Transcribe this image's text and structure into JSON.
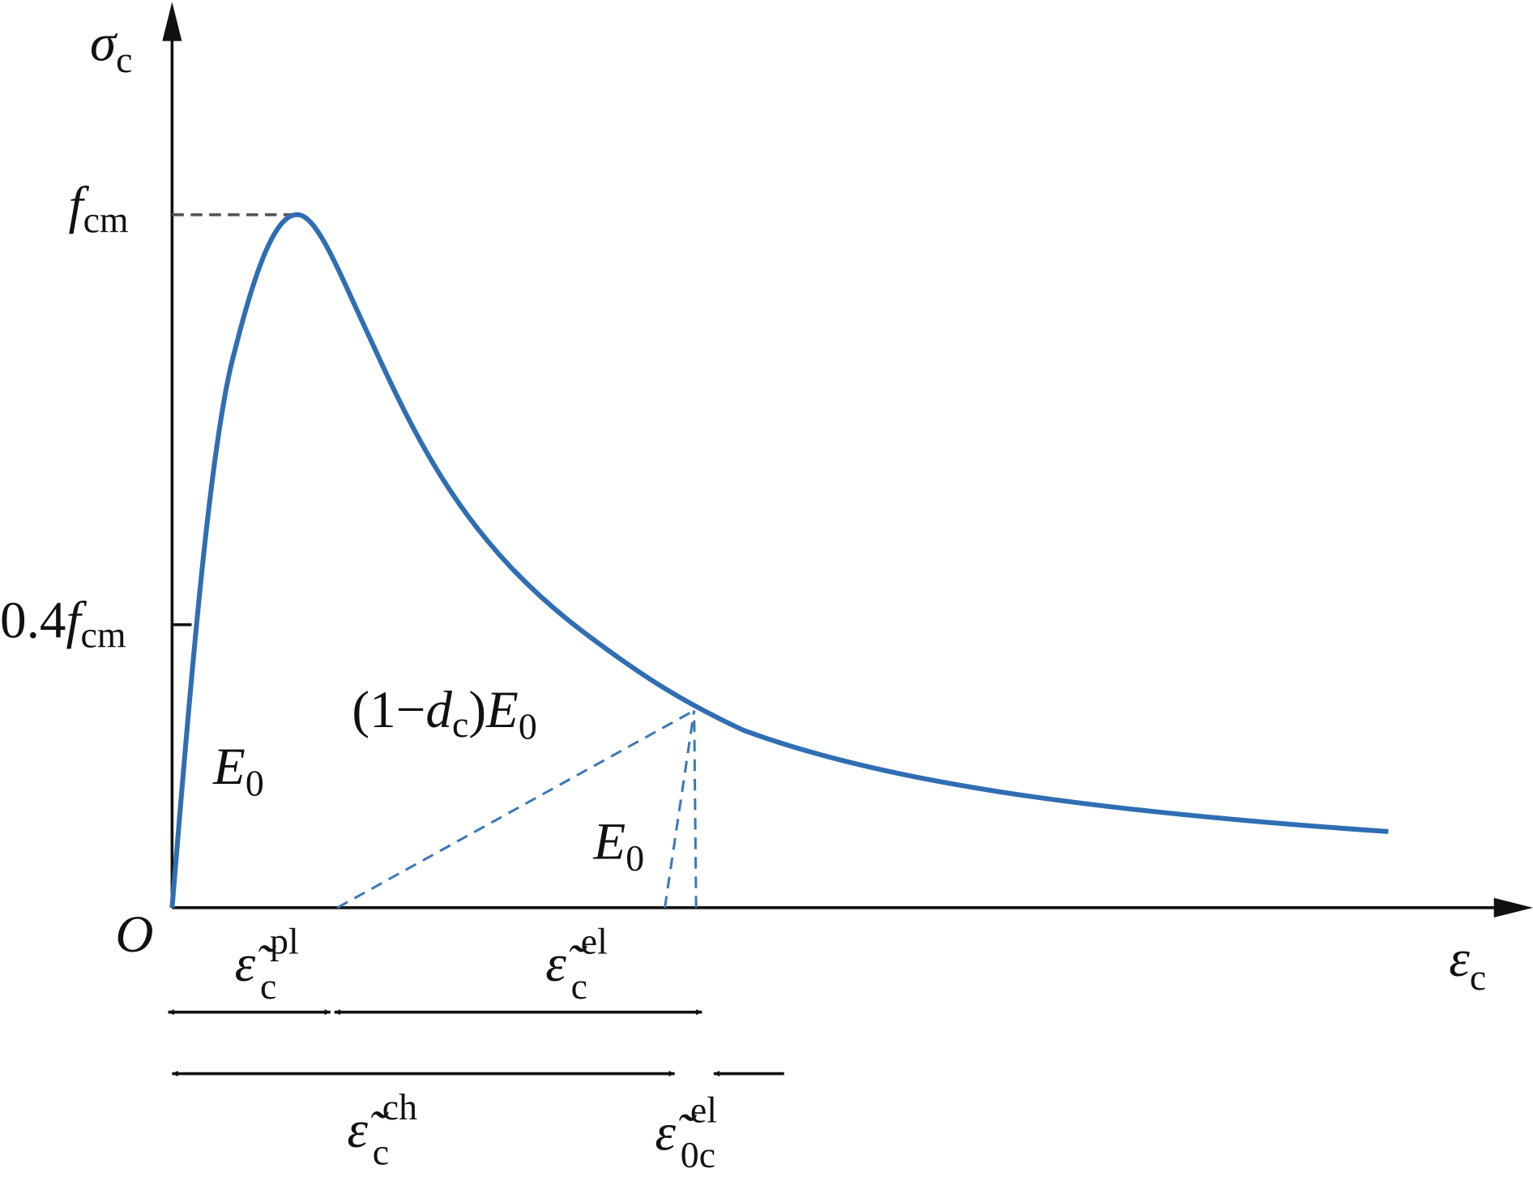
{
  "axes": {
    "y_label": {
      "main": "σ",
      "sub": "c"
    },
    "x_label": {
      "main": "ε",
      "sub": "c"
    },
    "origin": "O"
  },
  "y_marks": [
    {
      "main": "f",
      "sub": "cm"
    },
    {
      "prefix": "0.4",
      "main": "f",
      "sub": "cm"
    }
  ],
  "annotations": {
    "loading_modulus": {
      "main": "E",
      "sub": "0"
    },
    "damaged_modulus": {
      "prefix": "(1−",
      "main": "d",
      "sub": "c",
      "mid": ")",
      "main2": "E",
      "sub2": "0"
    },
    "unloading_modulus": {
      "main": "E",
      "sub": "0"
    }
  },
  "strains": {
    "plastic": {
      "main": "ε̃",
      "sub": "c",
      "sup": "pl"
    },
    "elastic": {
      "main": "ε̃",
      "sub": "c",
      "sup": "el"
    },
    "crushing": {
      "main": "ε̃",
      "sub": "c",
      "sup": "ch"
    },
    "undamaged_elastic": {
      "main": "ε̃",
      "sub": "0c",
      "sup": "el"
    }
  }
}
